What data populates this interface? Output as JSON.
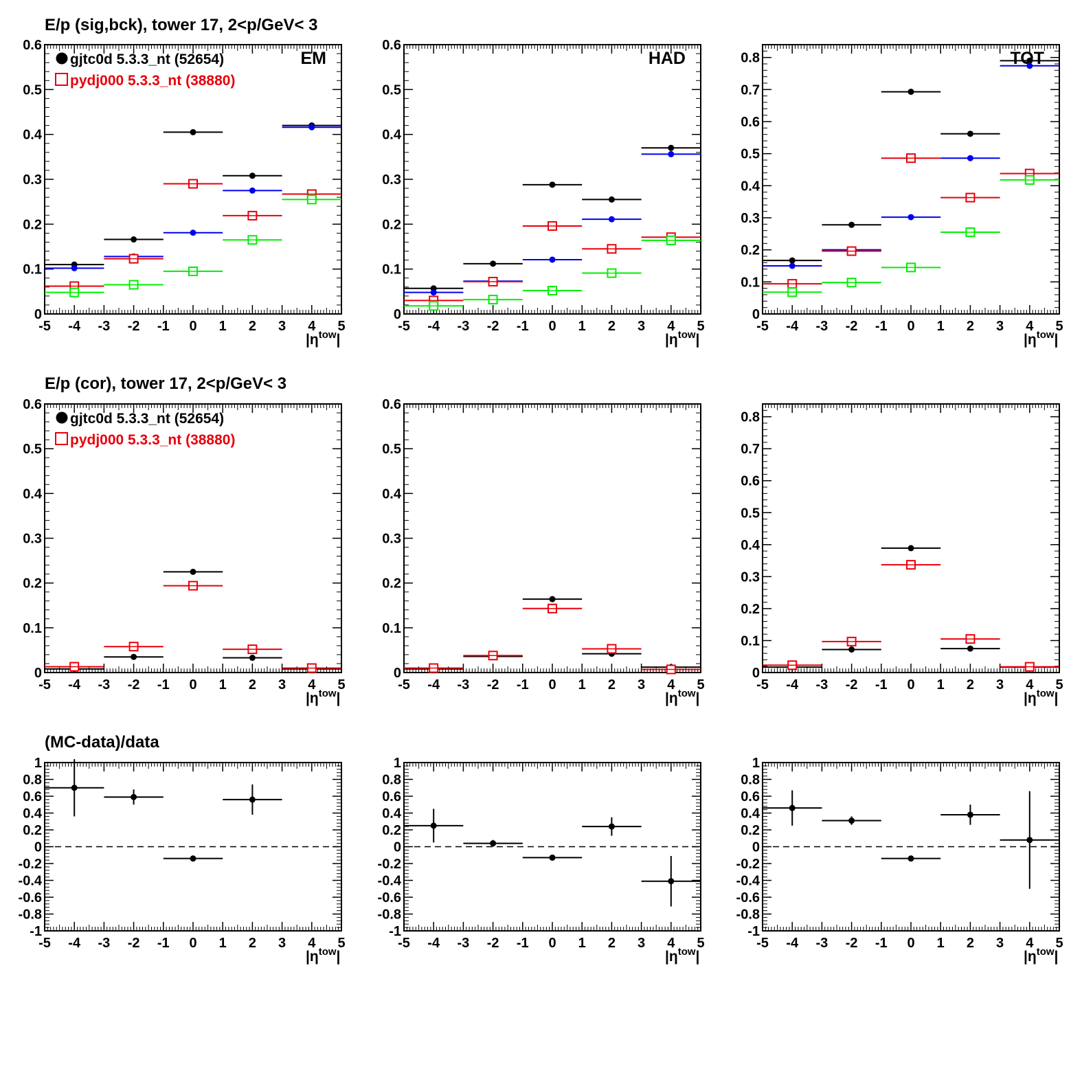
{
  "row_titles": [
    "E/p (sig,bck), tower 17,  2<p/GeV< 3",
    "E/p (cor), tower 17,  2<p/GeV< 3",
    "(MC-data)/data"
  ],
  "legend": {
    "data_label": "gjtc0d 5.3.3_nt (52654)",
    "mc_label": "pydj000 5.3.3_nt (38880)"
  },
  "colors": {
    "data": "#000000",
    "mc": "#e8000b",
    "data_bck": "#0000ee",
    "mc_bck": "#00ee00"
  },
  "xlabel": "|η",
  "xlabel_sup": "tow",
  "xlabel_end": "|",
  "chart_data": [
    {
      "type": "scatter",
      "row": 0,
      "col": 0,
      "tag": "EM",
      "xlim": [
        -5,
        5
      ],
      "ylim": [
        0,
        0.6
      ],
      "xticks": [
        -5,
        -4,
        -3,
        -2,
        -1,
        0,
        1,
        2,
        3,
        4,
        5
      ],
      "yticks": [
        0,
        0.1,
        0.2,
        0.3,
        0.4,
        0.5,
        0.6
      ],
      "x": [
        -4,
        -2,
        0,
        2,
        4
      ],
      "xerr": 1,
      "legend_shown": true,
      "series": [
        {
          "color": "data",
          "marker": "filled",
          "values": [
            0.11,
            0.166,
            0.405,
            0.308,
            0.42
          ]
        },
        {
          "color": "data_bck",
          "marker": "filled",
          "values": [
            0.102,
            0.128,
            0.181,
            0.275,
            0.416
          ]
        },
        {
          "color": "mc",
          "marker": "open",
          "values": [
            0.062,
            0.123,
            0.29,
            0.219,
            0.267
          ]
        },
        {
          "color": "mc_bck",
          "marker": "open",
          "values": [
            0.048,
            0.065,
            0.095,
            0.165,
            0.255
          ]
        }
      ]
    },
    {
      "type": "scatter",
      "row": 0,
      "col": 1,
      "tag": "HAD",
      "xlim": [
        -5,
        5
      ],
      "ylim": [
        0,
        0.6
      ],
      "xticks": [
        -5,
        -4,
        -3,
        -2,
        -1,
        0,
        1,
        2,
        3,
        4,
        5
      ],
      "yticks": [
        0,
        0.1,
        0.2,
        0.3,
        0.4,
        0.5,
        0.6
      ],
      "x": [
        -4,
        -2,
        0,
        2,
        4
      ],
      "xerr": 1,
      "series": [
        {
          "color": "data",
          "marker": "filled",
          "values": [
            0.057,
            0.112,
            0.288,
            0.255,
            0.37
          ]
        },
        {
          "color": "data_bck",
          "marker": "filled",
          "values": [
            0.048,
            0.073,
            0.121,
            0.211,
            0.356
          ]
        },
        {
          "color": "mc",
          "marker": "open",
          "values": [
            0.03,
            0.072,
            0.196,
            0.145,
            0.171
          ]
        },
        {
          "color": "mc_bck",
          "marker": "open",
          "values": [
            0.018,
            0.032,
            0.052,
            0.091,
            0.164
          ]
        }
      ]
    },
    {
      "type": "scatter",
      "row": 0,
      "col": 2,
      "tag": "TOT",
      "xlim": [
        -5,
        5
      ],
      "ylim": [
        0,
        0.84
      ],
      "xticks": [
        -5,
        -4,
        -3,
        -2,
        -1,
        0,
        1,
        2,
        3,
        4,
        5
      ],
      "yticks": [
        0,
        0.1,
        0.2,
        0.3,
        0.4,
        0.5,
        0.6,
        0.7,
        0.8
      ],
      "x": [
        -4,
        -2,
        0,
        2,
        4
      ],
      "xerr": 1,
      "series": [
        {
          "color": "data",
          "marker": "filled",
          "values": [
            0.167,
            0.278,
            0.693,
            0.562,
            0.79
          ]
        },
        {
          "color": "data_bck",
          "marker": "filled",
          "values": [
            0.15,
            0.2,
            0.302,
            0.486,
            0.774
          ]
        },
        {
          "color": "mc",
          "marker": "open",
          "values": [
            0.094,
            0.196,
            0.486,
            0.363,
            0.438
          ]
        },
        {
          "color": "mc_bck",
          "marker": "open",
          "values": [
            0.068,
            0.098,
            0.145,
            0.255,
            0.418
          ]
        }
      ]
    },
    {
      "type": "scatter",
      "row": 1,
      "col": 0,
      "xlim": [
        -5,
        5
      ],
      "ylim": [
        0,
        0.6
      ],
      "xticks": [
        -5,
        -4,
        -3,
        -2,
        -1,
        0,
        1,
        2,
        3,
        4,
        5
      ],
      "yticks": [
        0,
        0.1,
        0.2,
        0.3,
        0.4,
        0.5,
        0.6
      ],
      "x": [
        -4,
        -2,
        0,
        2,
        4
      ],
      "xerr": 1,
      "legend_shown": true,
      "series": [
        {
          "color": "data",
          "marker": "filled",
          "values": [
            0.008,
            0.035,
            0.225,
            0.033,
            0.008
          ]
        },
        {
          "color": "mc",
          "marker": "open",
          "values": [
            0.013,
            0.058,
            0.194,
            0.052,
            0.01
          ]
        }
      ]
    },
    {
      "type": "scatter",
      "row": 1,
      "col": 1,
      "xlim": [
        -5,
        5
      ],
      "ylim": [
        0,
        0.6
      ],
      "xticks": [
        -5,
        -4,
        -3,
        -2,
        -1,
        0,
        1,
        2,
        3,
        4,
        5
      ],
      "yticks": [
        0,
        0.1,
        0.2,
        0.3,
        0.4,
        0.5,
        0.6
      ],
      "x": [
        -4,
        -2,
        0,
        2,
        4
      ],
      "xerr": 1,
      "series": [
        {
          "color": "data",
          "marker": "filled",
          "values": [
            0.008,
            0.036,
            0.164,
            0.042,
            0.012
          ]
        },
        {
          "color": "mc",
          "marker": "open",
          "values": [
            0.01,
            0.038,
            0.143,
            0.053,
            0.007
          ]
        }
      ]
    },
    {
      "type": "scatter",
      "row": 1,
      "col": 2,
      "xlim": [
        -5,
        5
      ],
      "ylim": [
        0,
        0.84
      ],
      "xticks": [
        -5,
        -4,
        -3,
        -2,
        -1,
        0,
        1,
        2,
        3,
        4,
        5
      ],
      "yticks": [
        0,
        0.1,
        0.2,
        0.3,
        0.4,
        0.5,
        0.6,
        0.7,
        0.8
      ],
      "x": [
        -4,
        -2,
        0,
        2,
        4
      ],
      "xerr": 1,
      "series": [
        {
          "color": "data",
          "marker": "filled",
          "values": [
            0.017,
            0.072,
            0.389,
            0.075,
            0.017
          ]
        },
        {
          "color": "mc",
          "marker": "open",
          "values": [
            0.023,
            0.097,
            0.337,
            0.105,
            0.018
          ]
        }
      ]
    },
    {
      "type": "scatter",
      "row": 2,
      "col": 0,
      "xlim": [
        -5,
        5
      ],
      "ylim": [
        -1,
        1
      ],
      "zero_line": true,
      "xticks": [
        -5,
        -4,
        -3,
        -2,
        -1,
        0,
        1,
        2,
        3,
        4,
        5
      ],
      "yticks": [
        -1,
        -0.8,
        -0.6,
        -0.4,
        -0.2,
        0,
        0.2,
        0.4,
        0.6,
        0.8,
        1
      ],
      "x": [
        -4,
        -2,
        0,
        2
      ],
      "xerr": 1,
      "series": [
        {
          "color": "data",
          "marker": "filled",
          "values": [
            0.7,
            0.59,
            -0.14,
            0.56
          ],
          "yerr": [
            0.34,
            0.09,
            0.02,
            0.18
          ]
        }
      ]
    },
    {
      "type": "scatter",
      "row": 2,
      "col": 1,
      "xlim": [
        -5,
        5
      ],
      "ylim": [
        -1,
        1
      ],
      "zero_line": true,
      "xticks": [
        -5,
        -4,
        -3,
        -2,
        -1,
        0,
        1,
        2,
        3,
        4,
        5
      ],
      "yticks": [
        -1,
        -0.8,
        -0.6,
        -0.4,
        -0.2,
        0,
        0.2,
        0.4,
        0.6,
        0.8,
        1
      ],
      "x": [
        -4,
        -2,
        0,
        2,
        4
      ],
      "xerr": 1,
      "series": [
        {
          "color": "data",
          "marker": "filled",
          "values": [
            0.25,
            0.04,
            -0.13,
            0.24,
            -0.41
          ],
          "yerr": [
            0.2,
            0.04,
            0.02,
            0.11,
            0.3
          ]
        }
      ]
    },
    {
      "type": "scatter",
      "row": 2,
      "col": 2,
      "xlim": [
        -5,
        5
      ],
      "ylim": [
        -1,
        1
      ],
      "zero_line": true,
      "xticks": [
        -5,
        -4,
        -3,
        -2,
        -1,
        0,
        1,
        2,
        3,
        4,
        5
      ],
      "yticks": [
        -1,
        -0.8,
        -0.6,
        -0.4,
        -0.2,
        0,
        0.2,
        0.4,
        0.6,
        0.8,
        1
      ],
      "x": [
        -4,
        -2,
        0,
        2,
        4
      ],
      "xerr": 1,
      "series": [
        {
          "color": "data",
          "marker": "filled",
          "values": [
            0.46,
            0.31,
            -0.14,
            0.38,
            0.08
          ],
          "yerr": [
            0.21,
            0.05,
            0.02,
            0.12,
            0.58
          ]
        }
      ]
    }
  ]
}
